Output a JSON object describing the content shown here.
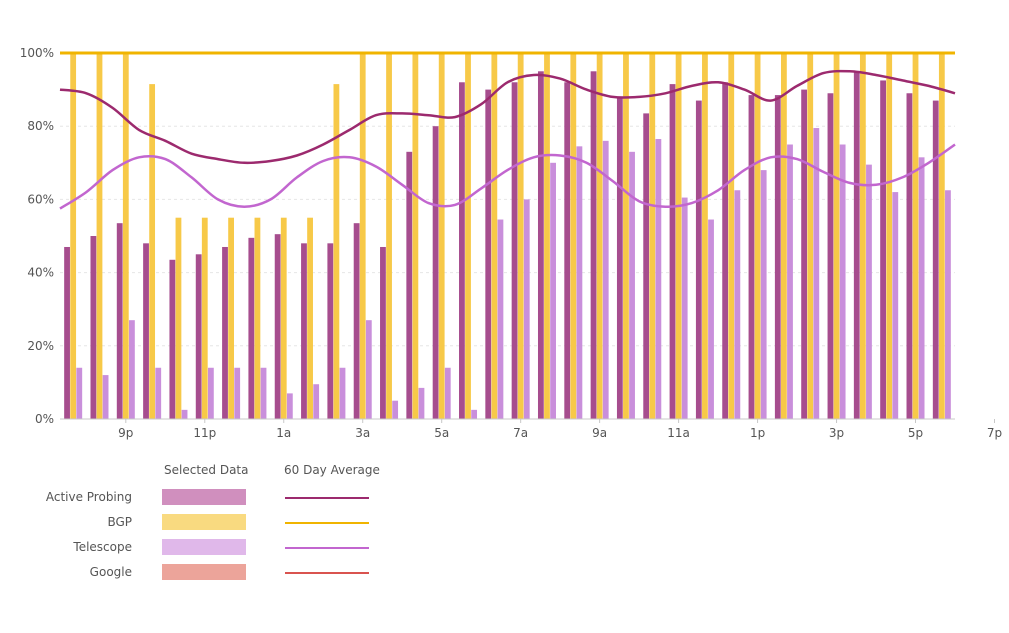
{
  "chart_data": {
    "type": "bar",
    "y_axis": {
      "ticks": [
        "0%",
        "20%",
        "40%",
        "60%",
        "80%",
        "100%"
      ],
      "ylim": [
        0,
        100
      ],
      "grid": true
    },
    "x_axis": {
      "tick_labels": [
        "9p",
        "11p",
        "1a",
        "3a",
        "5a",
        "7a",
        "9a",
        "11a",
        "1p",
        "3p",
        "5p",
        "7p"
      ]
    },
    "series": [
      {
        "name": "Active Probing",
        "key": "active_probing",
        "color": "#a64d8e",
        "values": [
          47,
          50,
          53.5,
          48,
          43.5,
          45,
          47,
          49.5,
          50.5,
          48,
          48,
          53.5,
          47,
          73,
          80,
          92,
          90,
          92,
          95,
          92,
          95,
          88,
          83.5,
          91.5,
          87,
          92,
          88.5,
          88.5,
          90,
          89,
          95,
          92.5,
          89,
          87
        ]
      },
      {
        "name": "BGP",
        "key": "bgp",
        "color": "#f7c948",
        "values": [
          100,
          100,
          100,
          91.5,
          55,
          55,
          55,
          55,
          55,
          55,
          91.5,
          100,
          100,
          100,
          100,
          100,
          100,
          100,
          100,
          100,
          100,
          100,
          100,
          100,
          100,
          100,
          100,
          100,
          100,
          100,
          100,
          100,
          100,
          100
        ]
      },
      {
        "name": "Telescope",
        "key": "telescope",
        "color": "#c98fdb",
        "values": [
          14,
          12,
          27,
          14,
          2.5,
          14,
          14,
          14,
          7,
          9.5,
          14,
          27,
          5,
          8.5,
          14,
          2.5,
          54.5,
          60,
          70,
          74.5,
          76,
          73,
          76.5,
          60.5,
          54.5,
          62.5,
          68,
          75,
          79.5,
          75,
          69.5,
          62,
          71.5,
          62.5
        ]
      }
    ],
    "averages": [
      {
        "name": "Active Probing",
        "color": "#9c2a6e",
        "values": [
          90,
          89,
          85,
          79,
          76,
          72.5,
          71,
          70,
          70.5,
          72,
          75,
          79,
          83,
          83.5,
          83,
          82.5,
          86,
          92,
          94,
          93,
          90,
          88,
          88,
          89,
          91,
          92,
          90,
          87,
          91,
          94.5,
          95,
          94,
          92.5,
          91,
          89
        ]
      },
      {
        "name": "BGP",
        "color": "#f0b400",
        "values": [
          100,
          100,
          100,
          100,
          100,
          100,
          100,
          100,
          100,
          100,
          100,
          100,
          100,
          100,
          100,
          100,
          100,
          100,
          100,
          100,
          100,
          100,
          100,
          100,
          100,
          100,
          100,
          100,
          100,
          100,
          100,
          100,
          100,
          100,
          100
        ]
      },
      {
        "name": "Telescope",
        "color": "#c266cf",
        "values": [
          57.5,
          62,
          68,
          71.5,
          71,
          66,
          60,
          58,
          60,
          66,
          70.5,
          71.5,
          69,
          64,
          59,
          58.5,
          63,
          68,
          71.5,
          72,
          70,
          65,
          59.5,
          58,
          59,
          62.5,
          68,
          71.5,
          71,
          67.5,
          64.5,
          64,
          66,
          70,
          75
        ]
      }
    ]
  },
  "legend": {
    "col_selected": "Selected Data",
    "col_average": "60 Day Average",
    "rows": [
      {
        "label": "Active Probing",
        "swatch": "#d08fbe",
        "line": "#9c2a6e"
      },
      {
        "label": "BGP",
        "swatch": "#f9da80",
        "line": "#f0b400"
      },
      {
        "label": "Telescope",
        "swatch": "#e0b8ea",
        "line": "#c266cf"
      },
      {
        "label": "Google",
        "swatch": "#eca49a",
        "line": "#d9534f"
      }
    ]
  }
}
